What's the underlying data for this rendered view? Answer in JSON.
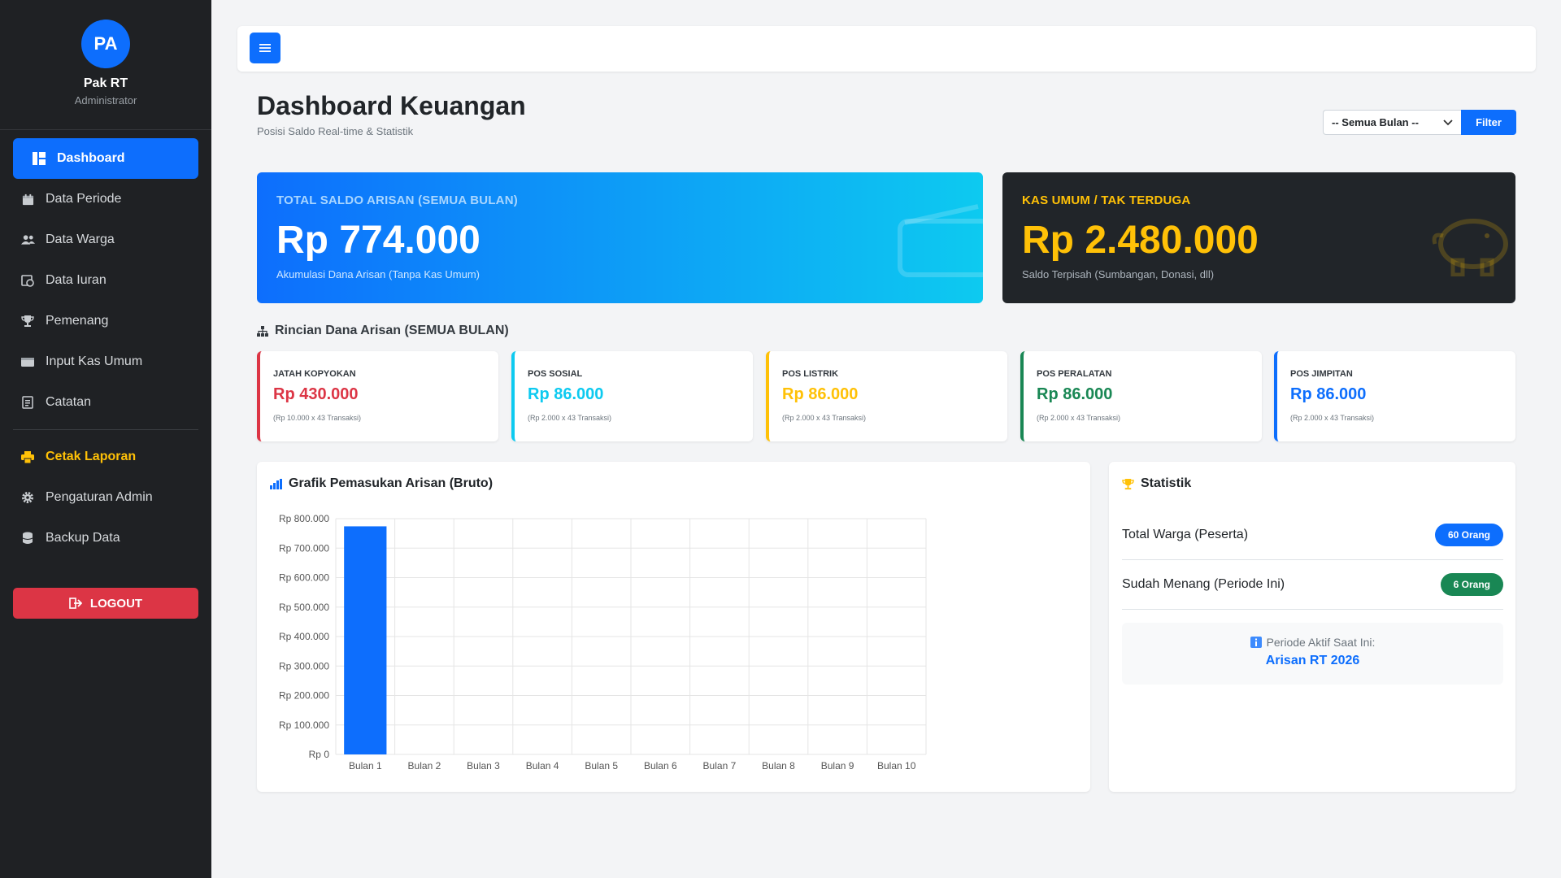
{
  "profile": {
    "initials": "PA",
    "name": "Pak RT",
    "role": "Administrator"
  },
  "nav": {
    "dashboard": "Dashboard",
    "data_periode": "Data Periode",
    "data_warga": "Data Warga",
    "data_iuran": "Data Iuran",
    "pemenang": "Pemenang",
    "input_kas_umum": "Input Kas Umum",
    "catatan": "Catatan",
    "cetak_laporan": "Cetak Laporan",
    "pengaturan_admin": "Pengaturan Admin",
    "backup_data": "Backup Data",
    "logout": "LOGOUT"
  },
  "header": {
    "title": "Dashboard Keuangan",
    "subtitle": "Posisi Saldo Real-time & Statistik",
    "filter_selected": "-- Semua Bulan --",
    "filter_button": "Filter"
  },
  "cards": {
    "arisan": {
      "label": "TOTAL SALDO ARISAN (SEMUA BULAN)",
      "value": "Rp 774.000",
      "note": "Akumulasi Dana Arisan (Tanpa Kas Umum)"
    },
    "kas": {
      "label": "KAS UMUM / TAK TERDUGA",
      "value": "Rp 2.480.000",
      "note": "Saldo Terpisah (Sumbangan, Donasi, dll)"
    }
  },
  "rincian": {
    "title": "Rincian Dana Arisan (SEMUA BULAN)",
    "items": [
      {
        "label": "JATAH KOPYOKAN",
        "value": "Rp 430.000",
        "note": "(Rp 10.000 x 43 Transaksi)",
        "color": "#dc3545"
      },
      {
        "label": "POS SOSIAL",
        "value": "Rp 86.000",
        "note": "(Rp 2.000 x 43 Transaksi)",
        "color": "#0dcaf0"
      },
      {
        "label": "POS LISTRIK",
        "value": "Rp 86.000",
        "note": "(Rp 2.000 x 43 Transaksi)",
        "color": "#ffc107"
      },
      {
        "label": "POS PERALATAN",
        "value": "Rp 86.000",
        "note": "(Rp 2.000 x 43 Transaksi)",
        "color": "#198754"
      },
      {
        "label": "POS JIMPITAN",
        "value": "Rp 86.000",
        "note": "(Rp 2.000 x 43 Transaksi)",
        "color": "#0d6efd"
      }
    ]
  },
  "chart_panel": {
    "title": "Grafik Pemasukan Arisan (Bruto)"
  },
  "chart_data": {
    "type": "bar",
    "categories": [
      "Bulan 1",
      "Bulan 2",
      "Bulan 3",
      "Bulan 4",
      "Bulan 5",
      "Bulan 6",
      "Bulan 7",
      "Bulan 8",
      "Bulan 9",
      "Bulan 10"
    ],
    "values": [
      774000,
      0,
      0,
      0,
      0,
      0,
      0,
      0,
      0,
      0
    ],
    "ylim": [
      0,
      800000
    ],
    "yticks": [
      0,
      100000,
      200000,
      300000,
      400000,
      500000,
      600000,
      700000,
      800000
    ],
    "ytick_labels": [
      "Rp 0",
      "Rp 100.000",
      "Rp 200.000",
      "Rp 300.000",
      "Rp 400.000",
      "Rp 500.000",
      "Rp 600.000",
      "Rp 700.000",
      "Rp 800.000"
    ],
    "grid": true,
    "color": "#0d6efd"
  },
  "statistik": {
    "title": "Statistik",
    "rows": [
      {
        "label": "Total Warga (Peserta)",
        "badge": "60 Orang",
        "color": "#0d6efd"
      },
      {
        "label": "Sudah Menang (Periode Ini)",
        "badge": "6 Orang",
        "color": "#198754"
      }
    ],
    "periode_label": "Periode Aktif Saat Ini:",
    "periode_value": "Arisan RT 2026"
  }
}
